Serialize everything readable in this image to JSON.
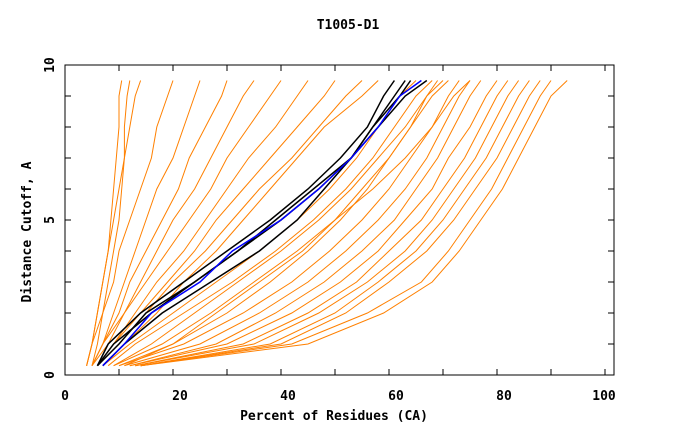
{
  "chart_data": {
    "type": "line",
    "title": "T1005-D1",
    "xlabel": "Percent of Residues (CA)",
    "ylabel": "Distance Cutoff, A",
    "xlim": [
      0,
      100
    ],
    "ylim": [
      0,
      10
    ],
    "xticks": [
      "0",
      "20",
      "40",
      "60",
      "80",
      "100"
    ],
    "yticks": [
      "0",
      "5",
      "10"
    ],
    "grid": false,
    "colors": {
      "orange": "#ff8000",
      "black": "#000000",
      "blue": "#0000ff"
    },
    "y": [
      0.3,
      1,
      2,
      3,
      4,
      5,
      6,
      7,
      8,
      9,
      9.5
    ],
    "series_orange": [
      [
        4,
        5,
        6,
        7,
        8,
        8.5,
        9,
        9.5,
        10,
        10,
        10.5
      ],
      [
        5,
        6,
        7,
        8,
        9,
        10,
        10.5,
        11,
        11,
        11.5,
        12
      ],
      [
        4,
        5,
        6,
        7,
        8,
        9,
        10,
        11,
        12,
        13,
        14
      ],
      [
        4,
        5,
        7,
        9,
        10,
        12,
        14,
        16,
        17,
        19,
        20
      ],
      [
        5,
        7,
        9,
        11,
        13,
        15,
        17,
        20,
        22,
        24,
        25
      ],
      [
        5,
        7,
        10,
        12,
        15,
        18,
        21,
        23,
        26,
        29,
        30
      ],
      [
        5,
        7,
        11,
        14,
        17,
        20,
        24,
        27,
        30,
        33,
        35
      ],
      [
        5,
        8,
        11,
        15,
        19,
        23,
        27,
        30,
        34,
        38,
        40
      ],
      [
        6,
        9,
        13,
        17,
        22,
        26,
        30,
        34,
        39,
        43,
        45
      ],
      [
        6,
        9,
        14,
        19,
        24,
        28,
        33,
        38,
        43,
        48,
        50
      ],
      [
        6,
        10,
        15,
        20,
        26,
        31,
        36,
        42,
        47,
        52,
        55
      ],
      [
        7,
        11,
        17,
        22,
        28,
        33,
        38,
        43,
        48,
        55,
        58
      ],
      [
        7,
        12,
        20,
        28,
        36,
        43,
        49,
        54,
        58,
        62,
        65
      ],
      [
        8,
        13,
        22,
        31,
        39,
        46,
        52,
        57,
        61,
        65,
        68
      ],
      [
        9,
        16,
        24,
        32,
        40,
        47,
        53,
        58,
        63,
        67,
        69
      ],
      [
        9,
        18,
        27,
        35,
        43,
        50,
        55,
        60,
        64,
        68,
        71
      ],
      [
        11,
        20,
        28,
        36,
        44,
        50,
        57,
        63,
        68,
        72,
        75
      ],
      [
        10,
        20,
        30,
        38,
        45,
        51,
        56,
        60,
        64,
        67,
        70
      ],
      [
        10,
        22,
        33,
        42,
        49,
        55,
        60,
        64,
        68,
        71,
        73
      ],
      [
        11,
        25,
        36,
        45,
        52,
        58,
        63,
        67,
        70,
        73,
        75
      ],
      [
        12,
        28,
        39,
        48,
        55,
        61,
        65,
        69,
        72,
        75,
        77
      ],
      [
        12,
        30,
        42,
        51,
        58,
        63,
        68,
        71,
        75,
        78,
        80
      ],
      [
        13,
        33,
        45,
        54,
        60,
        66,
        70,
        74,
        77,
        80,
        82
      ],
      [
        13,
        35,
        47,
        56,
        63,
        68,
        72,
        76,
        79,
        82,
        84
      ],
      [
        14,
        38,
        50,
        58,
        65,
        70,
        74,
        78,
        81,
        84,
        86
      ],
      [
        14,
        40,
        52,
        60,
        67,
        72,
        76,
        80,
        83,
        86,
        88
      ],
      [
        14,
        42,
        56,
        66,
        71,
        75,
        79,
        82,
        85,
        88,
        90
      ],
      [
        14,
        45,
        59,
        68,
        73,
        77,
        81,
        84,
        87,
        90,
        93
      ]
    ],
    "series_black": [
      [
        6,
        8,
        14,
        22,
        30,
        38,
        45,
        51,
        56,
        59,
        61
      ],
      [
        6,
        10,
        15,
        24,
        32,
        39,
        46,
        53,
        57,
        62,
        64
      ],
      [
        7,
        11,
        18,
        27,
        36,
        43,
        48,
        53,
        58,
        63,
        67
      ],
      [
        6,
        9,
        16,
        24,
        32,
        40,
        47,
        53,
        57,
        61,
        63
      ]
    ],
    "series_blue": [
      [
        7,
        11,
        16,
        25,
        31,
        40,
        47,
        53,
        58,
        62,
        66
      ]
    ]
  }
}
